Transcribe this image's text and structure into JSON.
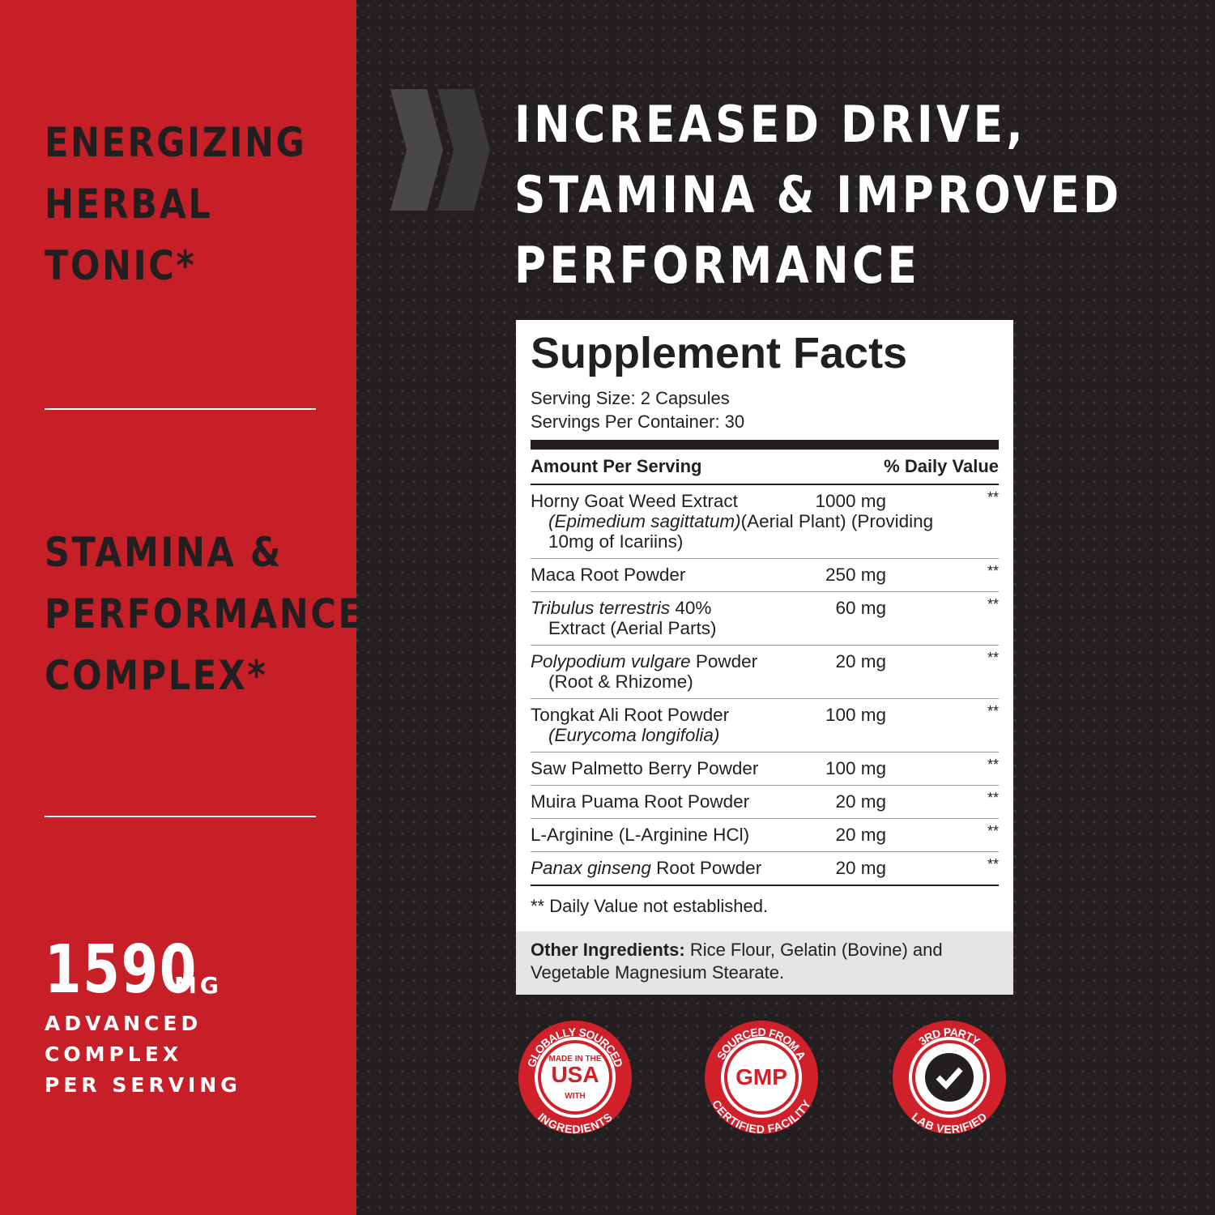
{
  "left_panel": {
    "features": [
      {
        "lines": [
          "ENERGIZING",
          "HERBAL",
          "TONIC*"
        ]
      },
      {
        "lines": [
          "STAMINA &",
          "PERFORMANCE",
          "COMPLEX*"
        ]
      }
    ],
    "highlight": {
      "amount": 1590,
      "unit": "MG",
      "caption": [
        "ADVANCED",
        "COMPLEX",
        "PER SERVING"
      ]
    }
  },
  "headline": [
    "INCREASED DRIVE,",
    "STAMINA & IMPROVED",
    "PERFORMANCE"
  ],
  "facts": {
    "title": "Supplement Facts",
    "serving_size": "Serving Size: 2 Capsules",
    "servings_per_container": "Servings Per Container: 30",
    "header_left": "Amount Per Serving",
    "header_right": "% Daily Value",
    "rows": [
      {
        "lines": [
          [
            {
              "text": "Horny Goat Weed Extract"
            }
          ],
          [
            {
              "text": "(Epimedium sagittatum)",
              "italic": true
            },
            {
              "text": "(Aerial Plant) (Providing"
            }
          ],
          [
            {
              "text": "10mg of Icariins)"
            }
          ]
        ],
        "amount": "1000 mg",
        "dv": "**"
      },
      {
        "lines": [
          [
            {
              "text": "Maca Root Powder"
            }
          ]
        ],
        "amount": "250 mg",
        "dv": "**"
      },
      {
        "lines": [
          [
            {
              "text": "Tribulus terrestris",
              "italic": true
            },
            {
              "text": " 40%"
            }
          ],
          [
            {
              "text": "Extract (Aerial Parts)"
            }
          ]
        ],
        "amount": "60 mg",
        "dv": "**"
      },
      {
        "lines": [
          [
            {
              "text": "Polypodium vulgare",
              "italic": true
            },
            {
              "text": " Powder"
            }
          ],
          [
            {
              "text": "(Root & Rhizome)"
            }
          ]
        ],
        "amount": "20 mg",
        "dv": "**"
      },
      {
        "lines": [
          [
            {
              "text": "Tongkat Ali Root Powder"
            }
          ],
          [
            {
              "text": "(Eurycoma longifolia)",
              "italic": true
            }
          ]
        ],
        "amount": "100 mg",
        "dv": "**"
      },
      {
        "lines": [
          [
            {
              "text": "Saw Palmetto Berry Powder"
            }
          ]
        ],
        "amount": "100 mg",
        "dv": "**"
      },
      {
        "lines": [
          [
            {
              "text": "Muira Puama Root Powder"
            }
          ]
        ],
        "amount": "20 mg",
        "dv": "**"
      },
      {
        "lines": [
          [
            {
              "text": "L-Arginine (L-Arginine HCl)"
            }
          ]
        ],
        "amount": "20 mg",
        "dv": "**"
      },
      {
        "lines": [
          [
            {
              "text": "Panax ginseng",
              "italic": true
            },
            {
              "text": " Root Powder"
            }
          ]
        ],
        "amount": "20 mg",
        "dv": "**"
      }
    ],
    "footnote": "** Daily Value not established.",
    "other_label": "Other Ingredients:",
    "other_text": "Rice Flour, Gelatin (Bovine) and Vegetable Magnesium Stearate."
  },
  "badges": [
    {
      "top": "GLOBALLY SOURCED",
      "center": [
        "MADE IN THE",
        "USA",
        "WITH"
      ],
      "bottom": "INGREDIENTS"
    },
    {
      "top": "SOURCED FROM A",
      "center": [
        "GMP"
      ],
      "bottom": "CERTIFIED FACILITY"
    },
    {
      "top": "3RD PARTY",
      "center": [],
      "bottom": "LAB VERIFIED"
    }
  ]
}
